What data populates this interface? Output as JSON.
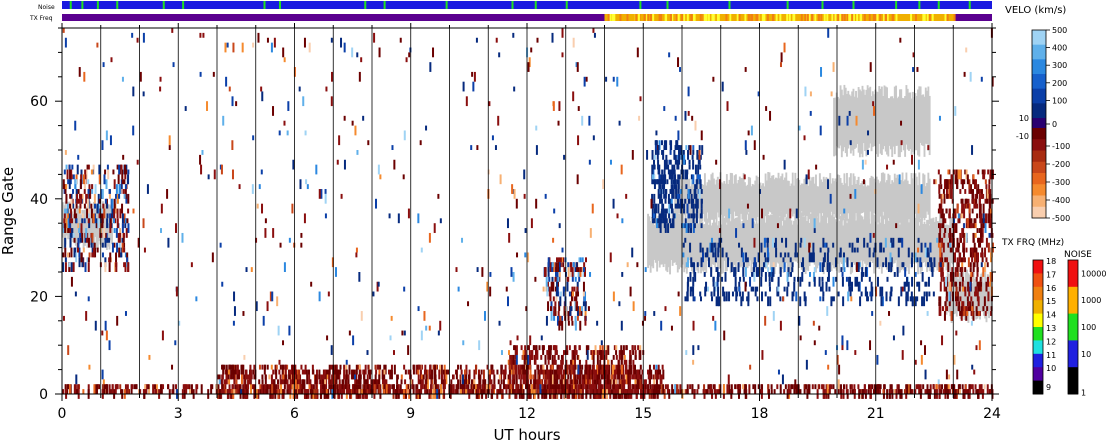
{
  "strip_labels": {
    "noise": "Noise",
    "txfreq": "TX Freq"
  },
  "chart_data": {
    "type": "heatmap",
    "xlabel": "UT hours",
    "ylabel": "Range Gate",
    "xlim": [
      0,
      24
    ],
    "ylim": [
      0,
      75
    ],
    "x_ticks": [
      0,
      3,
      6,
      9,
      12,
      15,
      18,
      21,
      24
    ],
    "x_tick_labels": [
      "0",
      "3",
      "6",
      "9",
      "12",
      "15",
      "18",
      "21",
      "24"
    ],
    "y_ticks": [
      0,
      20,
      40,
      60
    ],
    "y_tick_labels": [
      "0",
      "20",
      "40",
      "60"
    ],
    "hour_lines": [
      1,
      2,
      3,
      4,
      5,
      6,
      7,
      8,
      9,
      10,
      11,
      12,
      13,
      14,
      15,
      16,
      17,
      18,
      19,
      20,
      21,
      22,
      23
    ],
    "ground_scatter_color": "#c8c8c8",
    "velocity_colorbar": {
      "title": "VELO (km/s)",
      "tick_labels": [
        "500",
        "400",
        "300",
        "200",
        "100",
        "10",
        "0",
        "-10",
        "-100",
        "-200",
        "-300",
        "-400",
        "-500"
      ],
      "positive_colors": [
        "#9fd3f4",
        "#5fb0ea",
        "#2b88e0",
        "#1660cc",
        "#0b3fa8",
        "#062a7e"
      ],
      "negative_colors": [
        "#6b0000",
        "#8a0e0e",
        "#a82b10",
        "#c9471a",
        "#e8661e",
        "#f58a2e",
        "#f7b072",
        "#f9ceae"
      ]
    },
    "txfreq_colorbar": {
      "title": "TX FRQ (MHz)",
      "tick_labels": [
        "18",
        "17",
        "16",
        "15",
        "14",
        "13",
        "12",
        "11",
        "10",
        "9"
      ],
      "colors": [
        "#f01010",
        "#f05010",
        "#f08010",
        "#f0b000",
        "#ffff00",
        "#20e020",
        "#20e0e0",
        "#2020e0",
        "#5000a0",
        "#000000"
      ]
    },
    "noise_colorbar": {
      "title": "NOISE",
      "tick_labels": [
        "10000",
        "1000",
        "100",
        "10",
        "1"
      ],
      "colors": [
        "#f01010",
        "#ffb000",
        "#20e020",
        "#2020e0",
        "#000000"
      ]
    },
    "txfreq_strip": [
      {
        "from": 0,
        "to": 14,
        "color": "#5a0090"
      },
      {
        "from": 14,
        "to": 23.05,
        "color": "#f0b000"
      },
      {
        "from": 23.05,
        "to": 24,
        "color": "#5a0090"
      }
    ],
    "noise_strip_base": "#1a1ae0",
    "noise_strip_spikes": [
      0.2,
      0.5,
      0.9,
      1.4,
      2.6,
      3.1,
      5.2,
      5.6,
      7.8,
      8.3,
      9.9,
      11.6,
      12.2,
      13.0,
      14.9,
      15.6,
      17.2,
      18.7,
      19.6,
      20.4,
      21.5,
      22.1,
      22.6,
      23.4
    ],
    "ground_scatter_regions": [
      {
        "x0": 15.1,
        "x1": 23.0,
        "r0": 26,
        "r1": 36
      },
      {
        "x0": 15.8,
        "x1": 22.4,
        "r0": 36,
        "r1": 44
      },
      {
        "x0": 19.9,
        "x1": 22.4,
        "r0": 50,
        "r1": 62
      },
      {
        "x0": 0.0,
        "x1": 1.3,
        "r0": 31,
        "r1": 38
      },
      {
        "x0": 22.8,
        "x1": 24.0,
        "r0": 16,
        "r1": 24
      }
    ],
    "echo_regions": [
      {
        "x0": 0.0,
        "x1": 24.0,
        "r0": 0,
        "r1": 2,
        "cls": "neg",
        "density": 0.5
      },
      {
        "x0": 4.0,
        "x1": 15.5,
        "r0": 0,
        "r1": 6,
        "cls": "neg",
        "density": 0.45
      },
      {
        "x0": 11.5,
        "x1": 15.0,
        "r0": 0,
        "r1": 10,
        "cls": "neg",
        "density": 0.4
      },
      {
        "x0": 0.0,
        "x1": 1.7,
        "r0": 26,
        "r1": 47,
        "cls": "mix",
        "density": 0.3
      },
      {
        "x0": 12.4,
        "x1": 13.5,
        "r0": 14,
        "r1": 28,
        "cls": "mix",
        "density": 0.35
      },
      {
        "x0": 15.2,
        "x1": 16.5,
        "r0": 34,
        "r1": 52,
        "cls": "pos",
        "density": 0.4
      },
      {
        "x0": 16.0,
        "x1": 22.5,
        "r0": 19,
        "r1": 32,
        "cls": "pos",
        "density": 0.15
      },
      {
        "x0": 22.6,
        "x1": 24.0,
        "r0": 16,
        "r1": 46,
        "cls": "neg",
        "density": 0.35
      },
      {
        "x0": 0.0,
        "x1": 24.0,
        "r0": 0,
        "r1": 75,
        "cls": "mix",
        "density": 0.012
      }
    ]
  }
}
